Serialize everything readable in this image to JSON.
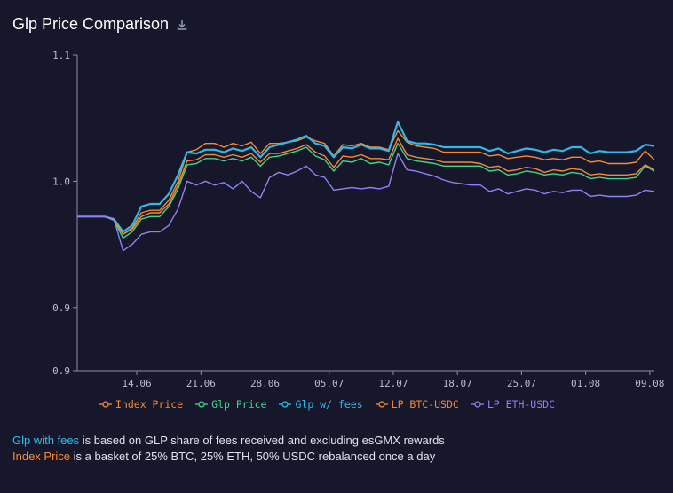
{
  "title": "Glp Price Comparison",
  "download_icon": "download-icon",
  "notes": [
    {
      "highlight": "Glp with fees",
      "highlight_color": "#2fb9e8",
      "text": " is based on GLP share of fees received and excluding esGMX rewards"
    },
    {
      "highlight": "Index Price",
      "highlight_color": "#f58a2f",
      "text": " is a basket of 25% BTC, 25% ETH, 50% USDC rebalanced once a day"
    }
  ],
  "chart_data": {
    "type": "line",
    "title": "Glp Price Comparison",
    "xlabel": "",
    "ylabel": "",
    "y_ticks": [
      "0.9",
      "0.9",
      "1.0",
      "1.1"
    ],
    "y_tick_values": [
      0.85,
      0.9,
      1.0,
      1.1
    ],
    "ylim": [
      0.85,
      1.1
    ],
    "x_ticks": [
      "14.06",
      "21.06",
      "28.06",
      "05.07",
      "12.07",
      "18.07",
      "25.07",
      "01.08",
      "09.08"
    ],
    "x_tick_values": [
      6.5,
      13.5,
      20.5,
      27.5,
      34.5,
      41.5,
      48.5,
      55.5,
      62.5
    ],
    "xlim": [
      0,
      63
    ],
    "grid": false,
    "legend_position": "bottom",
    "x": [
      0,
      1,
      2,
      3,
      4,
      5,
      6,
      7,
      8,
      9,
      10,
      11,
      12,
      13,
      14,
      15,
      16,
      17,
      18,
      19,
      20,
      21,
      22,
      23,
      24,
      25,
      26,
      27,
      28,
      29,
      30,
      31,
      32,
      33,
      34,
      35,
      36,
      37,
      38,
      39,
      40,
      41,
      42,
      43,
      44,
      45,
      46,
      47,
      48,
      49,
      50,
      51,
      52,
      53,
      54,
      55,
      56,
      57,
      58,
      59,
      60,
      61,
      62,
      63
    ],
    "series": [
      {
        "name": "Index Price",
        "color": "#f58a2f",
        "values": [
          0.972,
          0.972,
          0.972,
          0.972,
          0.97,
          0.958,
          0.963,
          0.975,
          0.977,
          0.977,
          0.985,
          1.0,
          1.023,
          1.025,
          1.03,
          1.03,
          1.027,
          1.03,
          1.028,
          1.031,
          1.022,
          1.03,
          1.03,
          1.031,
          1.032,
          1.035,
          1.032,
          1.03,
          1.02,
          1.029,
          1.028,
          1.03,
          1.027,
          1.027,
          1.025,
          1.04,
          1.031,
          1.028,
          1.027,
          1.026,
          1.023,
          1.023,
          1.023,
          1.023,
          1.023,
          1.02,
          1.021,
          1.018,
          1.019,
          1.02,
          1.019,
          1.017,
          1.018,
          1.017,
          1.019,
          1.019,
          1.015,
          1.016,
          1.014,
          1.014,
          1.014,
          1.015,
          1.024,
          1.017
        ]
      },
      {
        "name": "Glp Price",
        "color": "#3ed68a",
        "values": [
          0.972,
          0.972,
          0.972,
          0.972,
          0.969,
          0.955,
          0.96,
          0.97,
          0.972,
          0.972,
          0.98,
          0.994,
          1.013,
          1.014,
          1.018,
          1.018,
          1.016,
          1.018,
          1.016,
          1.019,
          1.012,
          1.019,
          1.02,
          1.022,
          1.024,
          1.027,
          1.02,
          1.017,
          1.008,
          1.016,
          1.015,
          1.018,
          1.014,
          1.015,
          1.013,
          1.03,
          1.018,
          1.016,
          1.015,
          1.014,
          1.012,
          1.012,
          1.012,
          1.012,
          1.012,
          1.008,
          1.009,
          1.005,
          1.006,
          1.008,
          1.007,
          1.005,
          1.006,
          1.005,
          1.007,
          1.006,
          1.002,
          1.003,
          1.002,
          1.002,
          1.002,
          1.003,
          1.012,
          1.008
        ]
      },
      {
        "name": "Glp w/ fees",
        "color": "#2fb9e8",
        "values": [
          0.972,
          0.972,
          0.972,
          0.972,
          0.97,
          0.96,
          0.965,
          0.98,
          0.982,
          0.982,
          0.99,
          1.005,
          1.023,
          1.022,
          1.025,
          1.025,
          1.023,
          1.026,
          1.024,
          1.027,
          1.019,
          1.027,
          1.029,
          1.031,
          1.033,
          1.036,
          1.03,
          1.028,
          1.019,
          1.027,
          1.026,
          1.029,
          1.026,
          1.026,
          1.024,
          1.047,
          1.032,
          1.03,
          1.03,
          1.029,
          1.027,
          1.027,
          1.027,
          1.027,
          1.027,
          1.024,
          1.026,
          1.022,
          1.024,
          1.026,
          1.025,
          1.023,
          1.025,
          1.024,
          1.027,
          1.027,
          1.022,
          1.024,
          1.023,
          1.023,
          1.023,
          1.024,
          1.029,
          1.028
        ]
      },
      {
        "name": "LP BTC-USDC",
        "color": "#f58a2f",
        "values": [
          0.972,
          0.972,
          0.972,
          0.972,
          0.97,
          0.958,
          0.962,
          0.972,
          0.975,
          0.975,
          0.982,
          0.997,
          1.016,
          1.017,
          1.021,
          1.021,
          1.019,
          1.021,
          1.019,
          1.022,
          1.015,
          1.022,
          1.022,
          1.024,
          1.026,
          1.029,
          1.023,
          1.02,
          1.011,
          1.02,
          1.019,
          1.021,
          1.018,
          1.018,
          1.017,
          1.034,
          1.021,
          1.019,
          1.018,
          1.017,
          1.015,
          1.015,
          1.015,
          1.015,
          1.014,
          1.011,
          1.012,
          1.008,
          1.009,
          1.011,
          1.01,
          1.007,
          1.009,
          1.008,
          1.01,
          1.009,
          1.005,
          1.006,
          1.005,
          1.005,
          1.005,
          1.006,
          1.013,
          1.009
        ]
      },
      {
        "name": "LP ETH-USDC",
        "color": "#8c82f5",
        "values": [
          0.972,
          0.972,
          0.972,
          0.972,
          0.97,
          0.945,
          0.95,
          0.958,
          0.96,
          0.96,
          0.965,
          0.978,
          1.0,
          0.997,
          1.0,
          0.997,
          0.999,
          0.994,
          1.0,
          0.992,
          0.987,
          1.003,
          1.007,
          1.005,
          1.008,
          1.012,
          1.005,
          1.003,
          0.993,
          0.994,
          0.995,
          0.994,
          0.995,
          0.994,
          0.996,
          1.022,
          1.009,
          1.008,
          1.006,
          1.004,
          1.001,
          0.999,
          0.998,
          0.997,
          0.997,
          0.992,
          0.994,
          0.99,
          0.992,
          0.994,
          0.993,
          0.99,
          0.992,
          0.991,
          0.993,
          0.993,
          0.988,
          0.989,
          0.988,
          0.988,
          0.988,
          0.989,
          0.993,
          0.992
        ]
      }
    ]
  }
}
